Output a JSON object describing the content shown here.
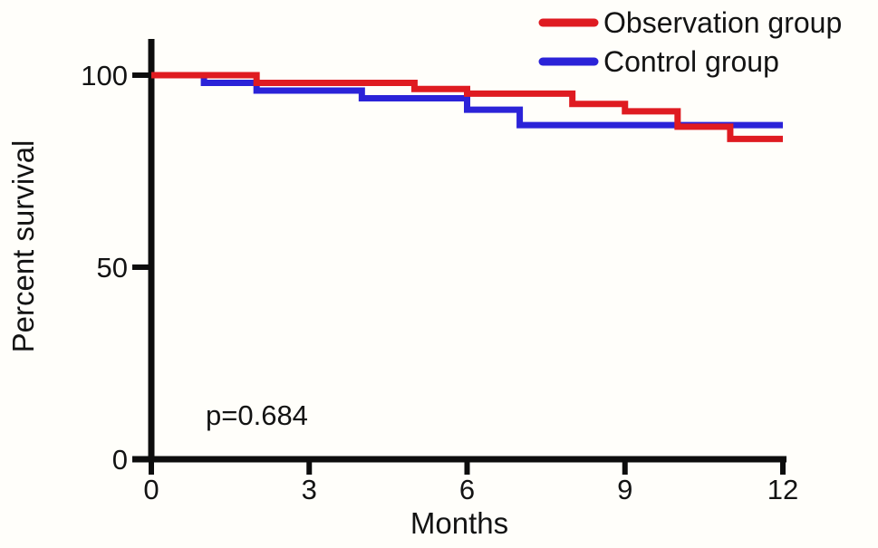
{
  "figure": {
    "background_color": "#fffefa",
    "axis_color": "#0d0d0d",
    "text_color": "#131313"
  },
  "chart_data": {
    "type": "line",
    "subtype": "kaplan-meier-step-survival",
    "title": "",
    "xlabel": "Months",
    "ylabel": "Percent survival",
    "xlim": [
      0,
      12
    ],
    "ylim": [
      0,
      100
    ],
    "x_ticks": [
      0,
      3,
      6,
      9,
      12
    ],
    "y_ticks": [
      100,
      50,
      0
    ],
    "grid": false,
    "legend_position": "top-right",
    "annotation": "p=0.684",
    "series": [
      {
        "name": "Observation group",
        "color": "#df1b21",
        "step": "post",
        "x": [
          0,
          2,
          5,
          6,
          8,
          9,
          10,
          11
        ],
        "y": [
          100,
          98,
          96.4,
          95.2,
          92.5,
          90.6,
          86.6,
          83.4
        ],
        "x_end": 12
      },
      {
        "name": "Control group",
        "color": "#2b23d8",
        "step": "post",
        "x": [
          0,
          1,
          2,
          4,
          6,
          7
        ],
        "y": [
          100,
          98,
          96,
          94,
          91,
          87
        ],
        "x_end": 12
      }
    ]
  }
}
